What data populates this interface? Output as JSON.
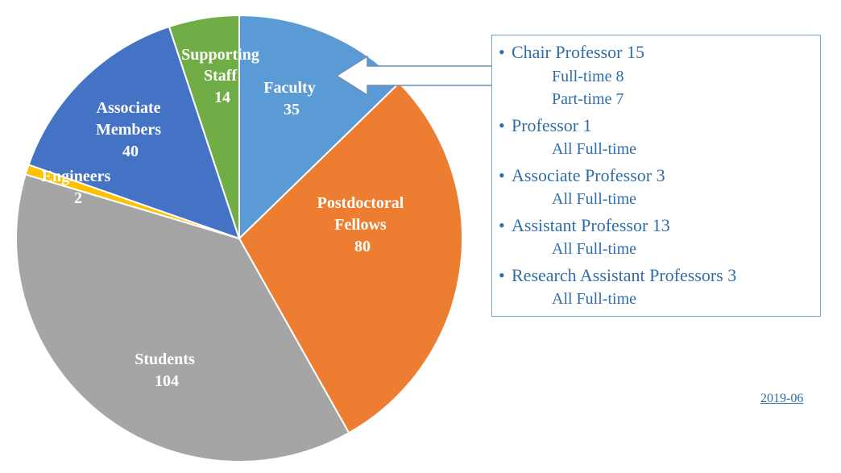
{
  "chart_data": {
    "type": "pie",
    "title": "",
    "slices": [
      {
        "label": "Faculty",
        "value": 35,
        "color": "#5b9bd5"
      },
      {
        "label": "Postdoctoral Fellows",
        "value": 80,
        "color": "#ed7d31"
      },
      {
        "label": "Students",
        "value": 104,
        "color": "#a5a5a5"
      },
      {
        "label": "Engineers",
        "value": 2,
        "color": "#ffc000"
      },
      {
        "label": "Associate Members",
        "value": 40,
        "color": "#4472c4"
      },
      {
        "label": "Supporting Staff",
        "value": 14,
        "color": "#70ad47"
      }
    ],
    "start_angle_deg": 0,
    "direction": "clockwise"
  },
  "detail_box": {
    "items": [
      {
        "title": "Chair Professor 15",
        "subs": [
          "Full-time 8",
          "Part-time 7"
        ]
      },
      {
        "title": "Professor 1",
        "subs": [
          "All Full-time"
        ]
      },
      {
        "title": "Associate Professor 3",
        "subs": [
          "All Full-time"
        ]
      },
      {
        "title": "Assistant Professor 13",
        "subs": [
          "All Full-time"
        ]
      },
      {
        "title": "Research Assistant Professors 3",
        "subs": [
          "All Full-time"
        ]
      }
    ]
  },
  "footer": {
    "date": "2019-06"
  },
  "colors": {
    "text_blue": "#2f6ea8",
    "box_border": "#7aa3c9",
    "arrow": "#6b8fb8"
  }
}
